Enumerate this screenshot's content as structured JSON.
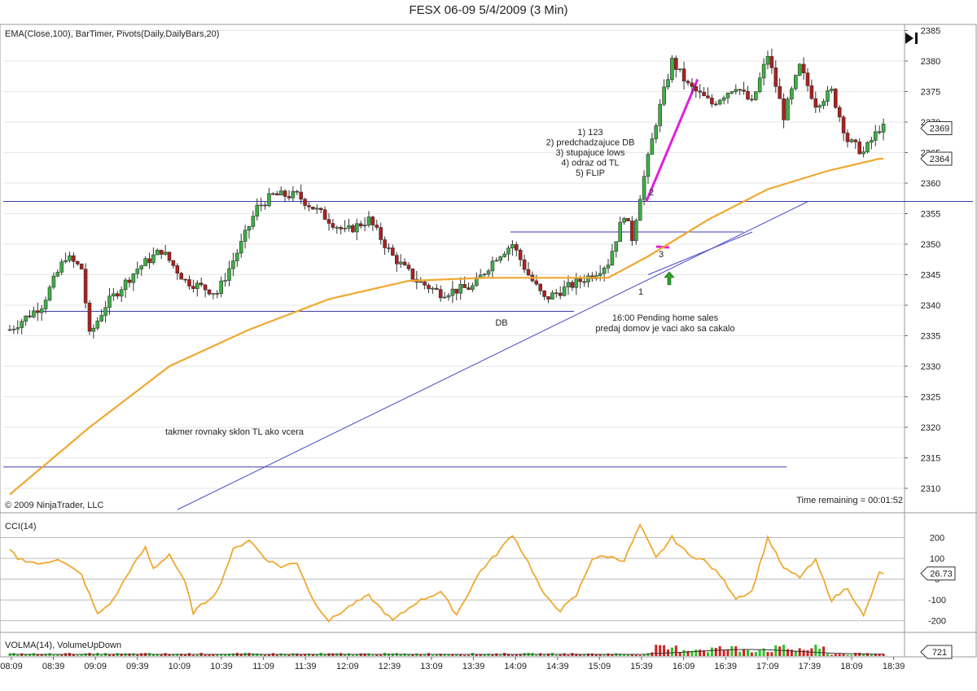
{
  "window_title": "FESX 06-09  5/4/2009 (3 Min)",
  "price_panel": {
    "indicator_label": "EMA(Close,100), BarTimer, Pivots(Daily,DailyBars,20)",
    "copyright": "© 2009 NinjaTrader, LLC",
    "time_remaining": "Time remaining = 00:01:52",
    "last_price_marker": "2369",
    "ema_marker": "2364",
    "annotations": {
      "checklist": [
        "1) 123",
        "2) predchadzajuce DB",
        "3) stupajuce lows",
        "4) odraz od TL",
        "5) FLIP"
      ],
      "label_2": "2",
      "label_3": "3",
      "label_1": "1",
      "db": "DB",
      "news_line1": "16:00 Pending home sales",
      "news_line2": "predaj domov je vaci ako sa cakalo",
      "tl_note": "takmer rovnaky sklon TL ako vcera"
    }
  },
  "cci_panel": {
    "label": "CCI(14)",
    "marker": "26.73"
  },
  "volume_panel": {
    "label": "VOLMA(14), VolumeUpDown",
    "marker": "721"
  },
  "chart_data": [
    {
      "type": "candlestick",
      "title": "FESX 06-09  5/4/2009 (3 Min)",
      "y_ticks": [
        2310,
        2315,
        2320,
        2325,
        2330,
        2335,
        2340,
        2345,
        2350,
        2355,
        2360,
        2365,
        2370,
        2375,
        2380,
        2385
      ],
      "ylim": [
        2306,
        2386
      ],
      "x_tick_labels": [
        "08:09",
        "08:39",
        "09:09",
        "09:39",
        "10:09",
        "10:39",
        "11:09",
        "11:39",
        "12:09",
        "12:39",
        "13:09",
        "13:39",
        "14:09",
        "14:39",
        "15:09",
        "15:39",
        "16:09",
        "16:39",
        "17:09",
        "17:39",
        "18:09",
        "18:39"
      ],
      "price_path_key_points": [
        [
          0,
          2336
        ],
        [
          8,
          2340
        ],
        [
          14,
          2348
        ],
        [
          18,
          2346
        ],
        [
          20,
          2335
        ],
        [
          24,
          2340
        ],
        [
          32,
          2346
        ],
        [
          38,
          2349
        ],
        [
          44,
          2344
        ],
        [
          52,
          2342
        ],
        [
          58,
          2350
        ],
        [
          62,
          2356
        ],
        [
          66,
          2358
        ],
        [
          72,
          2358
        ],
        [
          78,
          2355
        ],
        [
          84,
          2352
        ],
        [
          90,
          2354
        ],
        [
          96,
          2348
        ],
        [
          102,
          2344
        ],
        [
          108,
          2342
        ],
        [
          116,
          2343
        ],
        [
          122,
          2348
        ],
        [
          126,
          2350
        ],
        [
          130,
          2345
        ],
        [
          134,
          2341
        ],
        [
          140,
          2343
        ],
        [
          146,
          2345
        ],
        [
          150,
          2347
        ],
        [
          154,
          2355
        ],
        [
          156,
          2351
        ],
        [
          158,
          2358
        ],
        [
          162,
          2370
        ],
        [
          166,
          2380
        ],
        [
          170,
          2376
        ],
        [
          176,
          2373
        ],
        [
          182,
          2376
        ],
        [
          186,
          2373
        ],
        [
          190,
          2381
        ],
        [
          194,
          2371
        ],
        [
          198,
          2379
        ],
        [
          202,
          2373
        ],
        [
          206,
          2375
        ],
        [
          210,
          2367
        ],
        [
          214,
          2365
        ],
        [
          218,
          2369
        ]
      ],
      "ema_100_key_points": [
        [
          0,
          2309
        ],
        [
          20,
          2320
        ],
        [
          40,
          2330
        ],
        [
          60,
          2336
        ],
        [
          80,
          2341
        ],
        [
          100,
          2344
        ],
        [
          120,
          2344.5
        ],
        [
          150,
          2344.5
        ],
        [
          160,
          2348
        ],
        [
          175,
          2354
        ],
        [
          190,
          2359
        ],
        [
          205,
          2362
        ],
        [
          218,
          2364
        ]
      ],
      "horizontal_lines": [
        2357,
        2352,
        2339,
        2313.5
      ],
      "trendlines": [
        {
          "from": [
            42,
            2306.5
          ],
          "to": [
            194,
            2357
          ]
        },
        {
          "from": [
            160,
            2345
          ],
          "to": [
            180,
            2352
          ]
        }
      ],
      "magenta_line": {
        "from": [
          162,
          2357
        ],
        "to": [
          172,
          2377
        ]
      },
      "signal_arrow": {
        "at_bar": 162,
        "price": 2344.5
      }
    },
    {
      "type": "line",
      "name": "CCI(14)",
      "y_ticks": [
        200,
        100,
        0,
        -100,
        -200
      ],
      "ylim": [
        -260,
        280
      ],
      "key_points": [
        [
          0,
          140
        ],
        [
          2,
          100
        ],
        [
          8,
          70
        ],
        [
          12,
          100
        ],
        [
          18,
          20
        ],
        [
          22,
          -170
        ],
        [
          26,
          -100
        ],
        [
          30,
          40
        ],
        [
          34,
          150
        ],
        [
          36,
          50
        ],
        [
          40,
          120
        ],
        [
          44,
          -20
        ],
        [
          46,
          -160
        ],
        [
          52,
          -60
        ],
        [
          56,
          140
        ],
        [
          60,
          190
        ],
        [
          64,
          100
        ],
        [
          68,
          60
        ],
        [
          72,
          80
        ],
        [
          76,
          -100
        ],
        [
          80,
          -200
        ],
        [
          86,
          -120
        ],
        [
          90,
          -80
        ],
        [
          96,
          -200
        ],
        [
          102,
          -110
        ],
        [
          108,
          -60
        ],
        [
          112,
          -170
        ],
        [
          118,
          40
        ],
        [
          122,
          120
        ],
        [
          126,
          215
        ],
        [
          130,
          80
        ],
        [
          134,
          -80
        ],
        [
          138,
          -150
        ],
        [
          142,
          -80
        ],
        [
          146,
          100
        ],
        [
          150,
          110
        ],
        [
          154,
          90
        ],
        [
          158,
          260
        ],
        [
          162,
          100
        ],
        [
          166,
          200
        ],
        [
          170,
          120
        ],
        [
          174,
          90
        ],
        [
          178,
          20
        ],
        [
          182,
          -90
        ],
        [
          186,
          -60
        ],
        [
          190,
          200
        ],
        [
          194,
          50
        ],
        [
          198,
          10
        ],
        [
          202,
          90
        ],
        [
          206,
          -100
        ],
        [
          210,
          -40
        ],
        [
          214,
          -180
        ],
        [
          218,
          30
        ]
      ]
    },
    {
      "type": "bar",
      "name": "VOLMA(14), VolumeUpDown",
      "last_value": 721
    }
  ]
}
